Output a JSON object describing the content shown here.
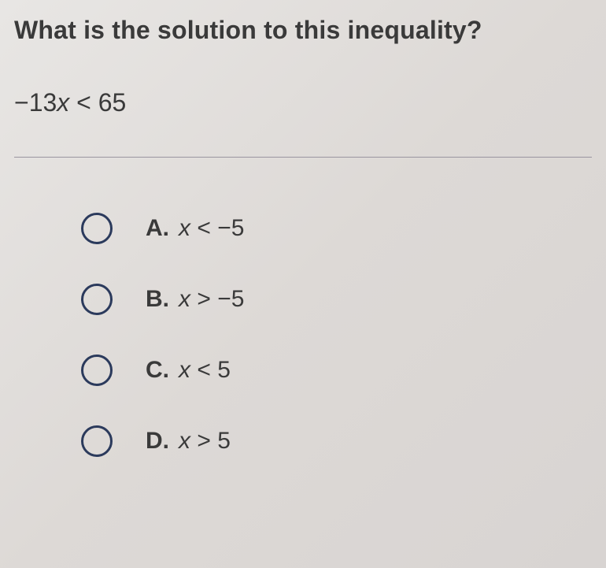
{
  "question": {
    "title": "What is the solution to this inequality?",
    "inequality_html": "−13<span class='var'>x</span> &lt; 65"
  },
  "options": [
    {
      "label": "A.",
      "html": "<span class='var'>x</span> &lt; −5"
    },
    {
      "label": "B.",
      "html": "<span class='var'>x</span> &gt; −5"
    },
    {
      "label": "C.",
      "html": "<span class='var'>x</span> &lt; 5"
    },
    {
      "label": "D.",
      "html": "<span class='var'>x</span> &gt; 5"
    }
  ],
  "style": {
    "background_gradient": [
      "#e8e6e4",
      "#ddd9d6",
      "#d8d4d2"
    ],
    "text_color": "#3a3a3a",
    "radio_border_color": "#2b3a5c",
    "divider_color": "#9a95a0",
    "title_fontsize": 32,
    "option_fontsize": 30,
    "radio_size": 40
  }
}
